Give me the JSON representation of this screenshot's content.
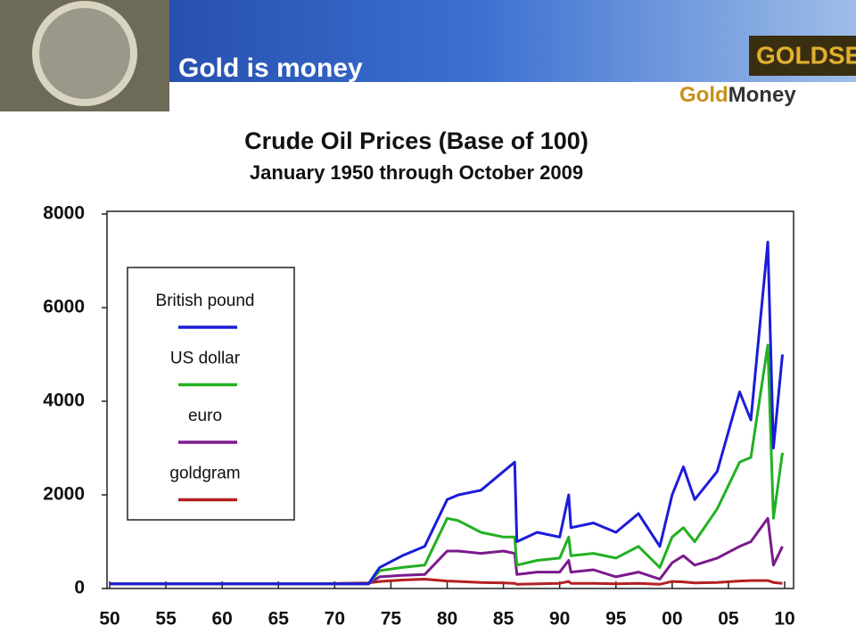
{
  "header": {
    "tagline": "Gold is money",
    "logo1": "GOLDSEI",
    "logo2": {
      "part1": "Gold",
      "part2": "Money"
    }
  },
  "chart_data": {
    "type": "line",
    "title": "Crude Oil Prices (Base of 100)",
    "subtitle": "January 1950 through October 2009",
    "x": [
      1950,
      1968,
      1973,
      1974,
      1976,
      1978,
      1980,
      1981,
      1983,
      1985,
      1986,
      1986.2,
      1988,
      1990,
      1990.8,
      1991,
      1993,
      1995,
      1997,
      1998.9,
      2000,
      2001,
      2002,
      2004,
      2006,
      2007,
      2008.5,
      2009,
      2009.8
    ],
    "series": [
      {
        "name": "British pound",
        "color": "#1c1cd8",
        "values": [
          100,
          100,
          100,
          450,
          700,
          900,
          1900,
          2000,
          2100,
          2500,
          2700,
          1000,
          1200,
          1100,
          2000,
          1300,
          1400,
          1200,
          1600,
          900,
          2000,
          2600,
          1900,
          2500,
          4200,
          3600,
          7400,
          3000,
          5000
        ]
      },
      {
        "name": "US dollar",
        "color": "#22b022",
        "values": [
          100,
          100,
          100,
          380,
          450,
          500,
          1500,
          1450,
          1200,
          1100,
          1100,
          500,
          600,
          650,
          1100,
          700,
          750,
          650,
          900,
          450,
          1100,
          1300,
          1000,
          1700,
          2700,
          2800,
          5200,
          1500,
          2900
        ]
      },
      {
        "name": "euro",
        "color": "#7b1a8c",
        "values": [
          100,
          100,
          100,
          250,
          280,
          300,
          800,
          800,
          750,
          800,
          750,
          300,
          350,
          350,
          600,
          350,
          400,
          250,
          350,
          200,
          550,
          700,
          500,
          650,
          900,
          1000,
          1500,
          500,
          900
        ]
      },
      {
        "name": "goldgram",
        "color": "#b32020",
        "values": [
          100,
          100,
          120,
          150,
          180,
          200,
          160,
          150,
          130,
          120,
          110,
          90,
          100,
          110,
          150,
          110,
          110,
          100,
          110,
          90,
          150,
          140,
          120,
          130,
          160,
          170,
          170,
          130,
          110
        ]
      }
    ],
    "xlim": [
      1950,
      2010
    ],
    "xticks": [
      {
        "value": 1950,
        "label": "50"
      },
      {
        "value": 1955,
        "label": "55"
      },
      {
        "value": 1960,
        "label": "60"
      },
      {
        "value": 1965,
        "label": "65"
      },
      {
        "value": 1970,
        "label": "70"
      },
      {
        "value": 1975,
        "label": "75"
      },
      {
        "value": 1980,
        "label": "80"
      },
      {
        "value": 1985,
        "label": "85"
      },
      {
        "value": 1990,
        "label": "90"
      },
      {
        "value": 1995,
        "label": "95"
      },
      {
        "value": 2000,
        "label": "00"
      },
      {
        "value": 2005,
        "label": "05"
      },
      {
        "value": 2010,
        "label": "10"
      }
    ],
    "ylim": [
      0,
      8000
    ],
    "yticks": [
      0,
      2000,
      4000,
      6000,
      8000
    ],
    "grid": false,
    "legend": "upper left"
  }
}
